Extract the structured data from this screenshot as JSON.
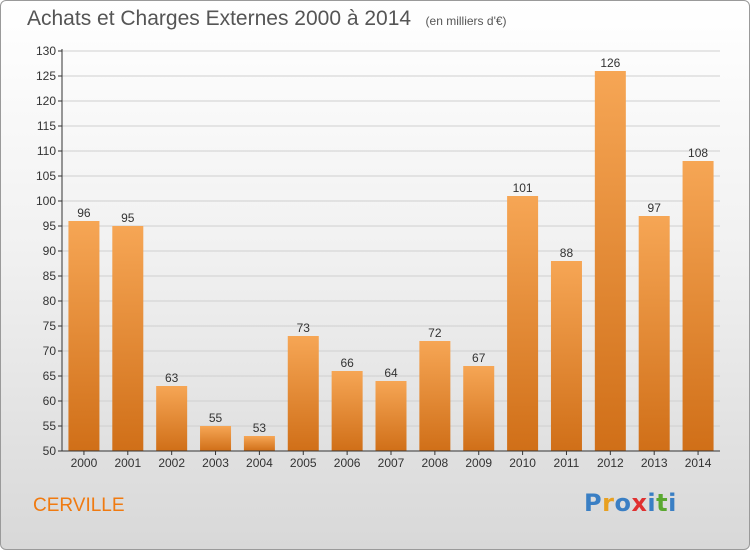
{
  "colors": {
    "bar_top": "#f6a655",
    "bar_bottom": "#d06f18",
    "axis": "#333333",
    "grid": "#cfcfcf",
    "label_text": "#333333",
    "commune_text": "#f07a10"
  },
  "header": {
    "title": "Achats et Charges Externes 2000 à 2014",
    "unit": "(en milliers d'€)"
  },
  "footer": {
    "commune": "CERVILLE",
    "logo": "Proxiti",
    "logo_colors": [
      "#3a7fc4",
      "#e8a020",
      "#3a7fc4",
      "#e03030",
      "#3a7fc4",
      "#5aa830",
      "#3a7fc4"
    ]
  },
  "chart_data": {
    "type": "bar",
    "title": "Achats et Charges Externes 2000 à 2014",
    "xlabel": "",
    "ylabel": "",
    "categories": [
      "2000",
      "2001",
      "2002",
      "2003",
      "2004",
      "2005",
      "2006",
      "2007",
      "2008",
      "2009",
      "2010",
      "2011",
      "2012",
      "2013",
      "2014"
    ],
    "values": [
      96,
      95,
      63,
      55,
      53,
      73,
      66,
      64,
      72,
      67,
      101,
      88,
      126,
      97,
      108
    ],
    "ylim": [
      50,
      130
    ],
    "yticks": [
      50,
      55,
      60,
      65,
      70,
      75,
      80,
      85,
      90,
      95,
      100,
      105,
      110,
      115,
      120,
      125,
      130
    ],
    "grid": true
  }
}
